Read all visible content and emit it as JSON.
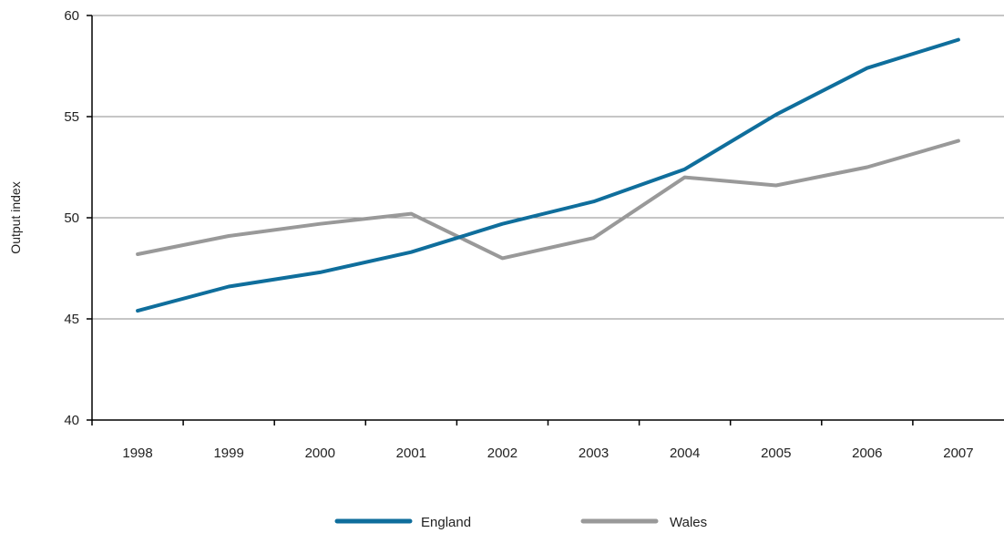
{
  "chart_data": {
    "type": "line",
    "title": "",
    "xlabel": "",
    "ylabel": "Output index",
    "categories": [
      "1998",
      "1999",
      "2000",
      "2001",
      "2002",
      "2003",
      "2004",
      "2005",
      "2006",
      "2007"
    ],
    "ylim": [
      40,
      60
    ],
    "yticks": [
      "40",
      "45",
      "50",
      "55",
      "60"
    ],
    "grid": "horizontal",
    "legend_position": "bottom",
    "series": [
      {
        "name": "England",
        "color": "#0F6E9C",
        "values": [
          45.4,
          46.6,
          47.3,
          48.3,
          49.7,
          50.8,
          52.4,
          55.1,
          57.4,
          58.8
        ]
      },
      {
        "name": "Wales",
        "color": "#999999",
        "values": [
          48.2,
          49.1,
          49.7,
          50.2,
          48.0,
          49.0,
          52.0,
          51.6,
          52.5,
          53.8
        ]
      }
    ]
  }
}
